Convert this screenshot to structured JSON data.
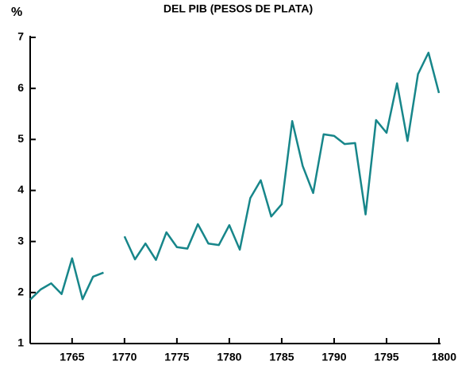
{
  "chart_data": {
    "type": "line",
    "title": "DEL PIB (PESOS DE PLATA)",
    "y_label": "%",
    "x": [
      1761,
      1762,
      1763,
      1764,
      1765,
      1766,
      1767,
      1768,
      1769,
      1770,
      1771,
      1772,
      1773,
      1774,
      1775,
      1776,
      1777,
      1778,
      1779,
      1780,
      1781,
      1782,
      1783,
      1784,
      1785,
      1786,
      1787,
      1788,
      1789,
      1790,
      1791,
      1792,
      1793,
      1794,
      1795,
      1796,
      1797,
      1798,
      1799,
      1800
    ],
    "series": [
      {
        "color": "#17868a",
        "values": [
          1.86,
          2.06,
          2.18,
          1.97,
          2.67,
          1.87,
          2.31,
          2.39,
          null,
          3.1,
          2.65,
          2.96,
          2.64,
          3.18,
          2.89,
          2.86,
          3.34,
          2.96,
          2.93,
          3.32,
          2.84,
          3.85,
          4.2,
          3.49,
          3.73,
          5.36,
          4.48,
          3.95,
          5.1,
          5.07,
          4.91,
          4.93,
          3.53,
          5.38,
          5.13,
          6.1,
          4.97,
          6.28,
          6.7,
          5.91
        ]
      }
    ],
    "xlim": [
      1761,
      1800
    ],
    "xticks": [
      1765,
      1770,
      1775,
      1780,
      1785,
      1790,
      1795,
      1800
    ],
    "ylim": [
      1,
      7
    ],
    "yticks": [
      1,
      2,
      3,
      4,
      5,
      6,
      7
    ]
  }
}
